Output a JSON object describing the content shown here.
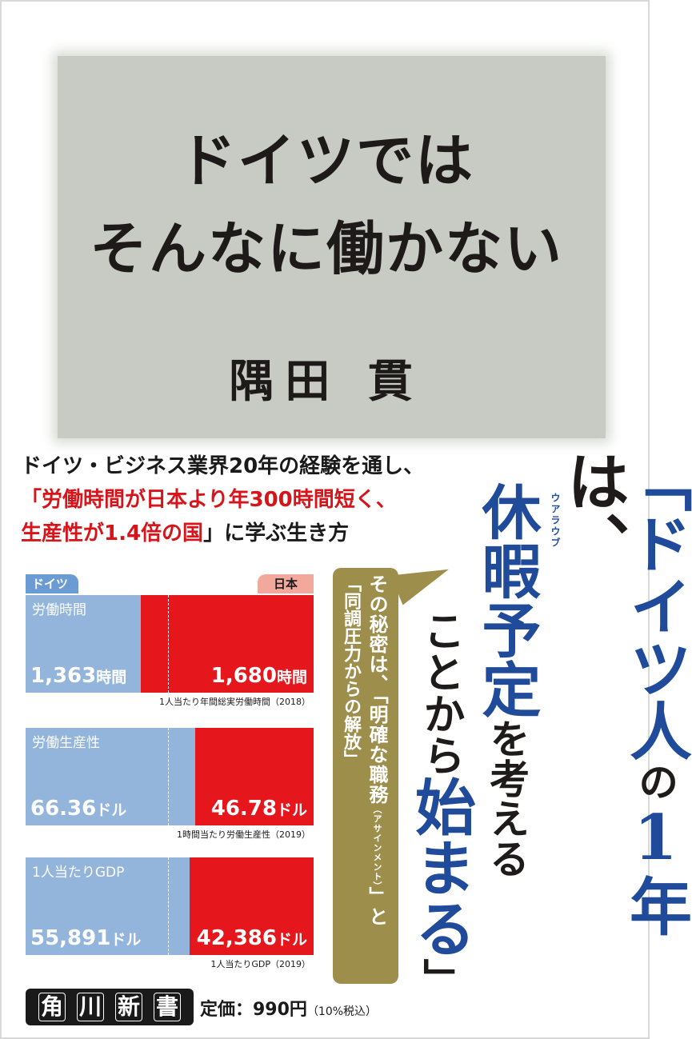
{
  "title_line1": "ドイツでは",
  "title_line2": "そんなに働かない",
  "author": "隅田 貫",
  "intro_line1": "ドイツ・ビジネス業界20年の経験を通し、",
  "intro_line2_red": "「労働時間が日本より年300時間短く、",
  "intro_line3_red": "生産性が1.4倍の国",
  "intro_line3_black": "」に学ぶ生き方",
  "tab_germany": "ドイツ",
  "tab_japan": "日本",
  "charts": [
    {
      "label": "労働時間",
      "de_value": "1,363",
      "de_unit": "時間",
      "jp_value": "1,680",
      "jp_unit": "時間",
      "caption": "1人当たり年間総実労働時間（2018）",
      "de_num": 1363,
      "jp_num": 1680
    },
    {
      "label": "労働生産性",
      "de_value": "66.36",
      "de_unit": "ドル",
      "jp_value": "46.78",
      "jp_unit": "ドル",
      "caption": "1時間当たり労働生産性（2019）",
      "de_num": 66.36,
      "jp_num": 46.78
    },
    {
      "label": "1人当たりGDP",
      "de_value": "55,891",
      "de_unit": "ドル",
      "jp_value": "42,386",
      "jp_unit": "ドル",
      "caption": "1人当たりGDP（2019）",
      "de_num": 55891,
      "jp_num": 42386
    }
  ],
  "bubble_col1": "その秘密は、「明確な職務",
  "bubble_col1_ruby": "（アサインメント）",
  "bubble_col1_end": "」と",
  "bubble_col2": "「同調圧力からの解放」",
  "catch_col1_a": "「ドイツ人",
  "catch_col1_b": "の",
  "catch_col1_c": "1年",
  "catch_col1_d": "は、",
  "catch_col2_a": "休暇予定",
  "catch_col2_b": "を考える",
  "catch_col3_a": "ことから",
  "catch_col3_b": "始まる",
  "catch_col3_c": "」",
  "ruby_kyuka": "ウアラウブ",
  "brand": [
    "角",
    "川",
    "新",
    "書"
  ],
  "price": "定価：990円",
  "price_tax": "（10%税込）"
}
